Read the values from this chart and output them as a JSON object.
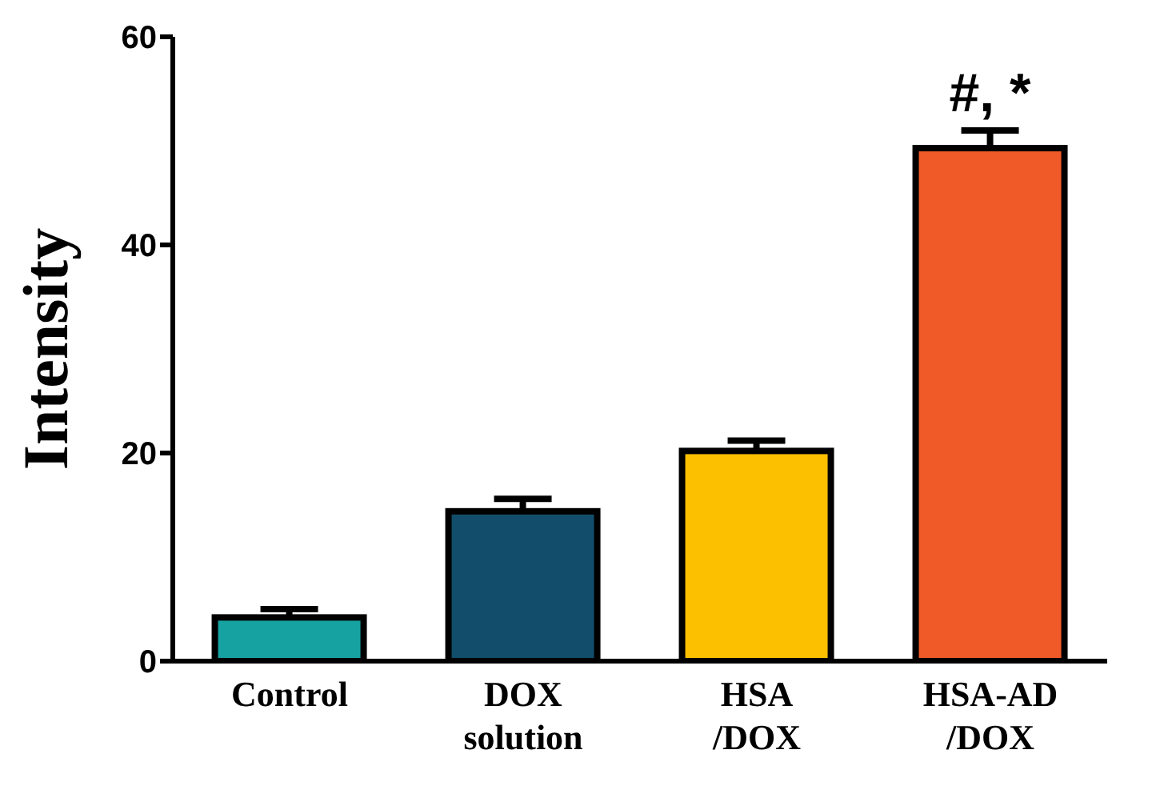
{
  "chart_data": {
    "type": "bar",
    "ylabel": "Intensity",
    "categories": [
      "Control",
      "DOX\nsolution",
      "HSA\n/DOX",
      "HSA-AD\n/DOX"
    ],
    "values": [
      4.2,
      14.4,
      20.2,
      49.3
    ],
    "colors": [
      "#17a2a2",
      "#124e6b",
      "#fcc000",
      "#f05a28"
    ],
    "errors": [
      0.8,
      1.2,
      1.0,
      1.7
    ],
    "ylim": [
      0,
      60
    ],
    "yticks": [
      0,
      20,
      40,
      60
    ],
    "grid": false,
    "legend": false,
    "annotations": [
      "#, *"
    ]
  }
}
